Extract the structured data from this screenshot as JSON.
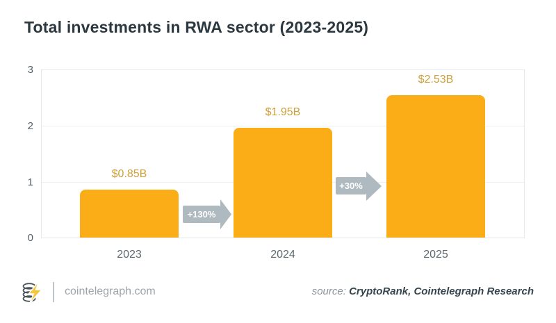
{
  "title": "Total investments in RWA sector (2023-2025)",
  "chart_data": {
    "type": "bar",
    "title": "Total investments in RWA sector (2023-2025)",
    "categories": [
      "2023",
      "2024",
      "2025"
    ],
    "values": [
      0.85,
      1.95,
      2.53
    ],
    "value_labels": [
      "$0.85B",
      "$1.95B",
      "$2.53B"
    ],
    "growth_annotations": [
      {
        "label": "+130%",
        "between": "2023-2024"
      },
      {
        "label": "+30%",
        "between": "2024-2025"
      }
    ],
    "ylim": [
      0,
      3
    ],
    "ytick_labels_top_to_bottom": [
      "3",
      "2",
      "1",
      "0"
    ],
    "xlabel": "",
    "ylabel": "",
    "grid": true,
    "legend": "none",
    "bar_color": "#FBAD18",
    "value_label_color": "#CDA03C",
    "arrow_color": "#AEB9C0"
  },
  "footer": {
    "logo": "cointelegraph-coins-lightning-logo",
    "site": "cointelegraph.com",
    "source_prefix": "source:",
    "source_names": "CryptoRank, Cointelegraph Research"
  }
}
